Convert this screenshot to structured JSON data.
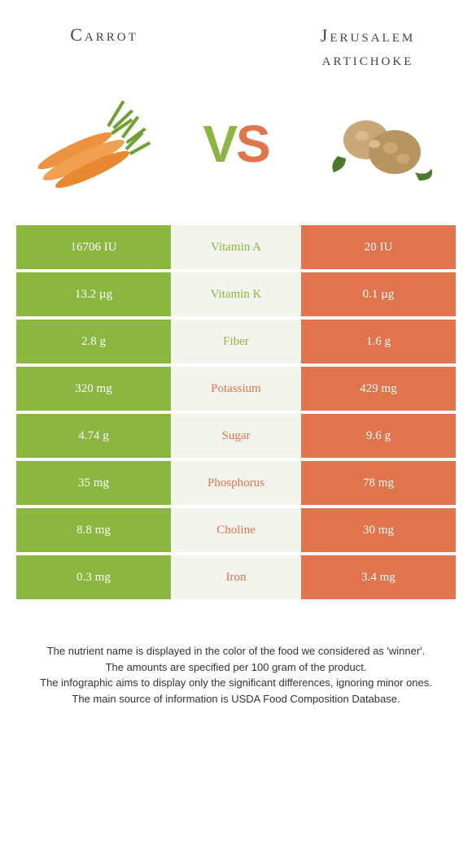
{
  "titles": {
    "left": "Carrot",
    "right": "Jerusalem artichoke"
  },
  "vs": {
    "v": "V",
    "s": "S"
  },
  "colors": {
    "left": "#8bb63f",
    "right": "#e0744c",
    "mid_bg": "#f4f4ee"
  },
  "rows": [
    {
      "left": "16706 IU",
      "name": "Vitamin A",
      "right": "20 IU",
      "winner": "left"
    },
    {
      "left": "13.2 µg",
      "name": "Vitamin K",
      "right": "0.1 µg",
      "winner": "left"
    },
    {
      "left": "2.8 g",
      "name": "Fiber",
      "right": "1.6 g",
      "winner": "left"
    },
    {
      "left": "320 mg",
      "name": "Potassium",
      "right": "429 mg",
      "winner": "right"
    },
    {
      "left": "4.74 g",
      "name": "Sugar",
      "right": "9.6 g",
      "winner": "right"
    },
    {
      "left": "35 mg",
      "name": "Phosphorus",
      "right": "78 mg",
      "winner": "right"
    },
    {
      "left": "8.8 mg",
      "name": "Choline",
      "right": "30 mg",
      "winner": "right"
    },
    {
      "left": "0.3 mg",
      "name": "Iron",
      "right": "3.4 mg",
      "winner": "right"
    }
  ],
  "footer": {
    "l1": "The nutrient name is displayed in the color of the food we considered as 'winner'.",
    "l2": "The amounts are specified per 100 gram of the product.",
    "l3": "The infographic aims to display only the significant differences, ignoring minor ones.",
    "l4": "The main source of information is USDA Food Composition Database."
  }
}
